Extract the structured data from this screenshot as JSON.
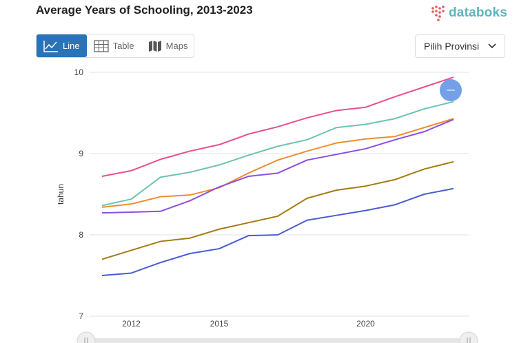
{
  "header": {
    "title": "Average Years of Schooling, 2013-2023",
    "brand": "databoks"
  },
  "tabs": [
    {
      "label": "Line",
      "icon": "line-chart-icon",
      "active": true
    },
    {
      "label": "Table",
      "icon": "table-icon",
      "active": false
    },
    {
      "label": "Maps",
      "icon": "map-icon",
      "active": false
    }
  ],
  "province_select": {
    "label": "Pilih Provinsi"
  },
  "colors": {
    "accent": "#2a73b8",
    "brand": "#5fb3c0",
    "logo_red": "#e05a5a",
    "handle": "#6c9be8"
  },
  "chart_data": {
    "type": "line",
    "title": "Average Years of Schooling, 2013-2023",
    "xlabel": "",
    "ylabel": "tahun",
    "x": [
      2011,
      2012,
      2013,
      2014,
      2015,
      2016,
      2017,
      2018,
      2019,
      2020,
      2021,
      2022,
      2023
    ],
    "x_ticks": [
      "2012",
      "2015",
      "2020"
    ],
    "ylim": [
      7,
      10
    ],
    "y_ticks": [
      "7",
      "8",
      "9",
      "10"
    ],
    "grid": true,
    "series": [
      {
        "color": "#e94e8a",
        "values": [
          8.72,
          8.79,
          8.93,
          9.03,
          9.11,
          9.24,
          9.33,
          9.44,
          9.53,
          9.57,
          9.7,
          9.82,
          9.94
        ]
      },
      {
        "color": "#6cc4b2",
        "values": [
          8.36,
          8.44,
          8.71,
          8.77,
          8.86,
          8.98,
          9.09,
          9.17,
          9.32,
          9.36,
          9.43,
          9.55,
          9.64
        ]
      },
      {
        "color": "#f08c2e",
        "values": [
          8.34,
          8.38,
          8.47,
          8.49,
          8.58,
          8.76,
          8.92,
          9.03,
          9.13,
          9.18,
          9.21,
          9.32,
          9.43
        ]
      },
      {
        "color": "#8c4ee0",
        "values": [
          8.27,
          8.28,
          8.29,
          8.42,
          8.59,
          8.72,
          8.76,
          8.92,
          8.99,
          9.06,
          9.17,
          9.27,
          9.42
        ]
      },
      {
        "color": "#a47b12",
        "values": [
          7.7,
          7.81,
          7.92,
          7.96,
          8.07,
          8.15,
          8.23,
          8.45,
          8.55,
          8.6,
          8.68,
          8.81,
          8.9
        ]
      },
      {
        "color": "#4a5cd0",
        "values": [
          7.5,
          7.53,
          7.66,
          7.77,
          7.83,
          7.99,
          8.0,
          8.18,
          8.24,
          8.3,
          8.37,
          8.5,
          8.57
        ]
      }
    ]
  }
}
